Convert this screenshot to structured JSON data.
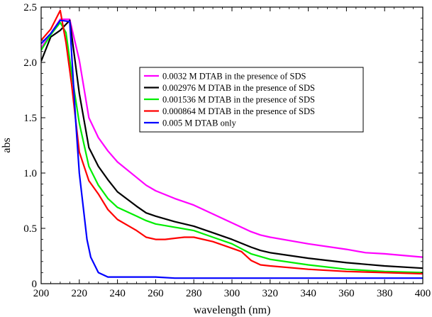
{
  "chart_data": {
    "type": "line",
    "xlabel": "wavelength (nm)",
    "ylabel": "abs",
    "xlim": [
      200,
      400
    ],
    "ylim": [
      0,
      2.5
    ],
    "xticks": [
      "200",
      "220",
      "240",
      "260",
      "280",
      "300",
      "320",
      "340",
      "360",
      "380",
      "400"
    ],
    "yticks": [
      "0",
      "0.5",
      "1.0",
      "1.5",
      "2.0",
      "2.5"
    ],
    "grid": false,
    "legend_position": "upper-right",
    "series": [
      {
        "name": "0.0032 M DTAB in the presence of SDS",
        "color": "#ff00ff",
        "points": [
          [
            200,
            2.13
          ],
          [
            205,
            2.26
          ],
          [
            210,
            2.39
          ],
          [
            215,
            2.39
          ],
          [
            220,
            2.02
          ],
          [
            225,
            1.5
          ],
          [
            230,
            1.32
          ],
          [
            235,
            1.2
          ],
          [
            240,
            1.1
          ],
          [
            250,
            0.96
          ],
          [
            255,
            0.89
          ],
          [
            260,
            0.84
          ],
          [
            270,
            0.77
          ],
          [
            280,
            0.71
          ],
          [
            290,
            0.63
          ],
          [
            300,
            0.55
          ],
          [
            310,
            0.47
          ],
          [
            315,
            0.44
          ],
          [
            320,
            0.42
          ],
          [
            340,
            0.36
          ],
          [
            360,
            0.31
          ],
          [
            370,
            0.28
          ],
          [
            380,
            0.27
          ],
          [
            400,
            0.24
          ]
        ]
      },
      {
        "name": "0.002976 M DTAB in the presence of SDS",
        "color": "#000000",
        "points": [
          [
            200,
            2.01
          ],
          [
            205,
            2.23
          ],
          [
            210,
            2.29
          ],
          [
            215,
            2.38
          ],
          [
            220,
            1.72
          ],
          [
            225,
            1.23
          ],
          [
            230,
            1.06
          ],
          [
            235,
            0.94
          ],
          [
            240,
            0.83
          ],
          [
            250,
            0.7
          ],
          [
            255,
            0.64
          ],
          [
            260,
            0.61
          ],
          [
            270,
            0.56
          ],
          [
            280,
            0.52
          ],
          [
            290,
            0.46
          ],
          [
            300,
            0.4
          ],
          [
            310,
            0.33
          ],
          [
            315,
            0.3
          ],
          [
            320,
            0.28
          ],
          [
            340,
            0.23
          ],
          [
            360,
            0.19
          ],
          [
            380,
            0.16
          ],
          [
            400,
            0.14
          ]
        ]
      },
      {
        "name": "0.001536 M DTAB in the presence of SDS",
        "color": "#00ee00",
        "points": [
          [
            200,
            2.11
          ],
          [
            205,
            2.25
          ],
          [
            210,
            2.36
          ],
          [
            213,
            2.27
          ],
          [
            216,
            1.9
          ],
          [
            220,
            1.45
          ],
          [
            225,
            1.06
          ],
          [
            230,
            0.89
          ],
          [
            235,
            0.77
          ],
          [
            240,
            0.69
          ],
          [
            250,
            0.61
          ],
          [
            255,
            0.57
          ],
          [
            260,
            0.54
          ],
          [
            270,
            0.51
          ],
          [
            280,
            0.48
          ],
          [
            290,
            0.42
          ],
          [
            300,
            0.36
          ],
          [
            310,
            0.27
          ],
          [
            320,
            0.22
          ],
          [
            340,
            0.17
          ],
          [
            360,
            0.13
          ],
          [
            380,
            0.11
          ],
          [
            400,
            0.1
          ]
        ]
      },
      {
        "name": "0.000864 M DTAB in the presence of SDS",
        "color": "#ff0000",
        "points": [
          [
            200,
            2.2
          ],
          [
            205,
            2.3
          ],
          [
            210,
            2.47
          ],
          [
            213,
            2.18
          ],
          [
            216,
            1.8
          ],
          [
            220,
            1.19
          ],
          [
            225,
            0.93
          ],
          [
            230,
            0.81
          ],
          [
            235,
            0.67
          ],
          [
            240,
            0.58
          ],
          [
            245,
            0.53
          ],
          [
            250,
            0.48
          ],
          [
            255,
            0.42
          ],
          [
            260,
            0.4
          ],
          [
            265,
            0.4
          ],
          [
            270,
            0.41
          ],
          [
            275,
            0.42
          ],
          [
            280,
            0.42
          ],
          [
            290,
            0.38
          ],
          [
            300,
            0.32
          ],
          [
            305,
            0.29
          ],
          [
            310,
            0.21
          ],
          [
            315,
            0.17
          ],
          [
            320,
            0.16
          ],
          [
            340,
            0.13
          ],
          [
            360,
            0.11
          ],
          [
            380,
            0.1
          ],
          [
            400,
            0.09
          ]
        ]
      },
      {
        "name": "0.005 M DTAB only",
        "color": "#0000ff",
        "points": [
          [
            200,
            2.17
          ],
          [
            205,
            2.26
          ],
          [
            210,
            2.38
          ],
          [
            215,
            2.37
          ],
          [
            218,
            1.5
          ],
          [
            220,
            1.0
          ],
          [
            222,
            0.7
          ],
          [
            224,
            0.4
          ],
          [
            226,
            0.24
          ],
          [
            230,
            0.1
          ],
          [
            235,
            0.06
          ],
          [
            240,
            0.06
          ],
          [
            255,
            0.06
          ],
          [
            260,
            0.06
          ],
          [
            270,
            0.05
          ],
          [
            280,
            0.05
          ],
          [
            300,
            0.05
          ],
          [
            400,
            0.05
          ]
        ]
      }
    ]
  }
}
